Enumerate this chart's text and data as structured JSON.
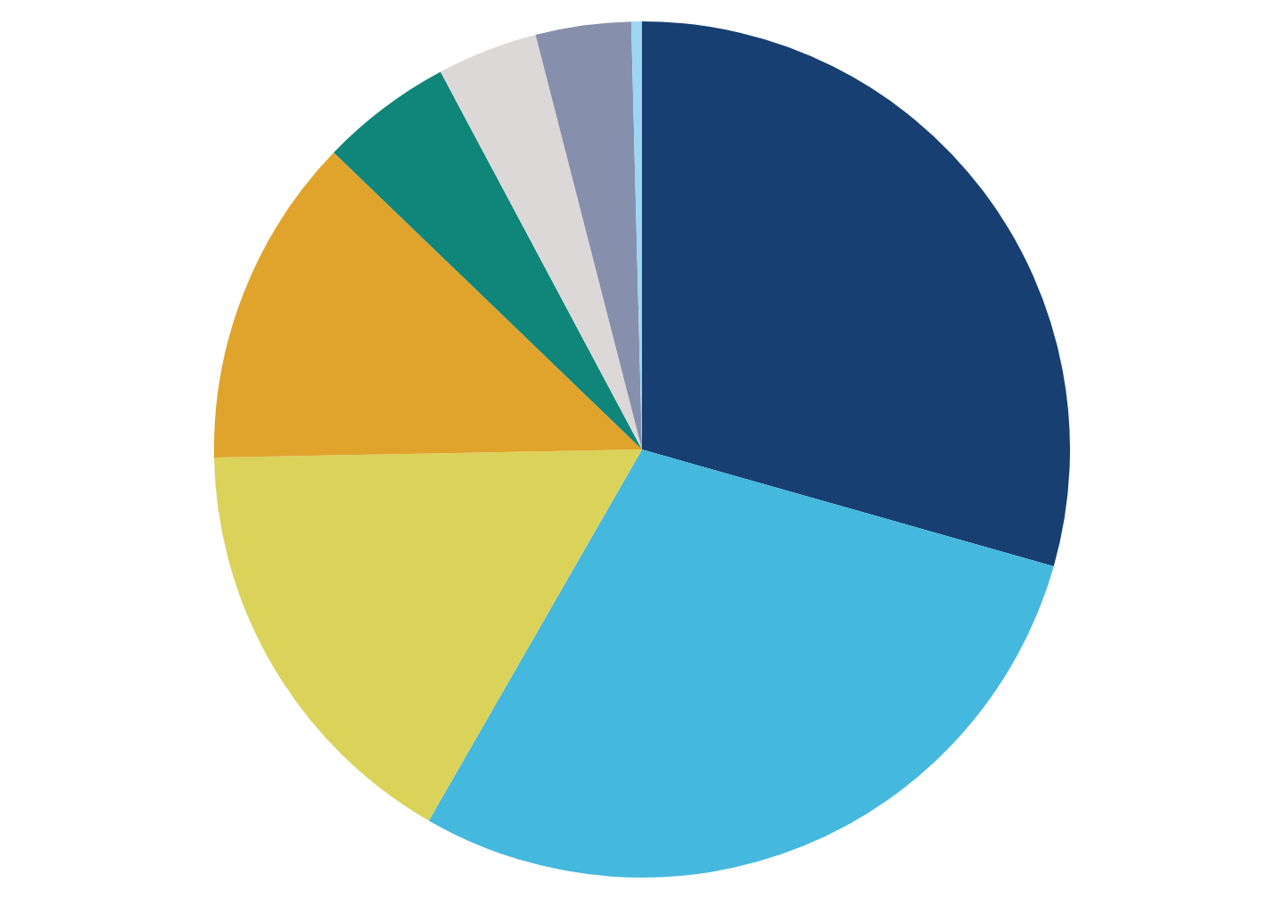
{
  "chart_data": {
    "type": "pie",
    "categories": [
      null,
      null,
      null,
      null,
      null,
      null,
      null,
      null
    ],
    "values": [
      29.4,
      28.9,
      16.4,
      12.5,
      5.0,
      3.8,
      3.6,
      0.4
    ],
    "colors": [
      "#173f72",
      "#45b8de",
      "#dbd25a",
      "#e0a42c",
      "#108579",
      "#ddd8d8",
      "#8690ac",
      "#9dd6f2"
    ]
  }
}
